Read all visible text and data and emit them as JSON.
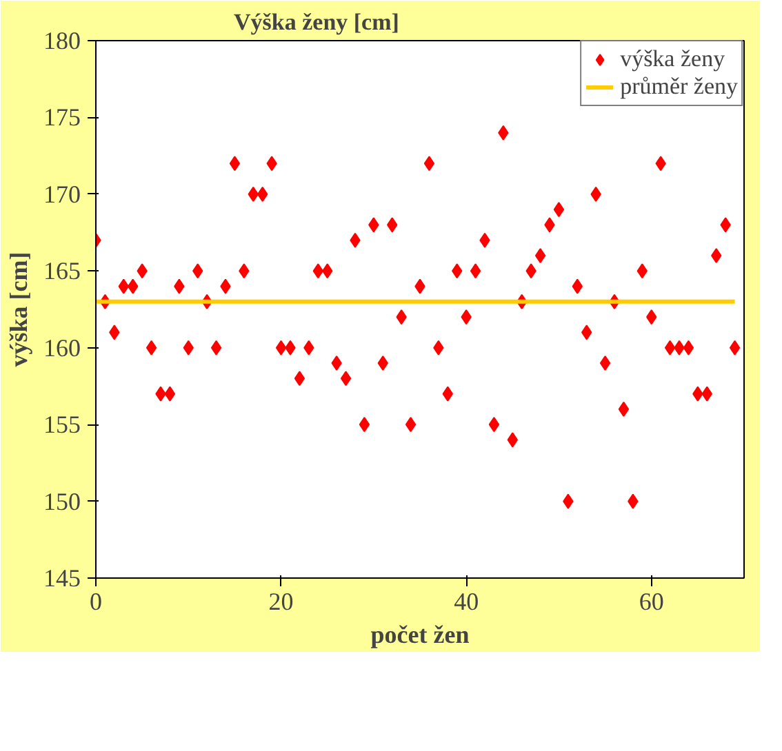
{
  "chart_data": {
    "type": "scatter",
    "title": "Výška ženy [cm]",
    "xlabel": "počet žen",
    "ylabel": "výška [cm]",
    "x": [
      0,
      1,
      2,
      3,
      4,
      5,
      6,
      7,
      8,
      9,
      10,
      11,
      12,
      13,
      14,
      15,
      16,
      17,
      18,
      19,
      20,
      21,
      22,
      23,
      24,
      25,
      26,
      27,
      28,
      29,
      30,
      31,
      32,
      33,
      34,
      35,
      36,
      37,
      38,
      39,
      40,
      41,
      42,
      43,
      44,
      45,
      46,
      47,
      48,
      49,
      50,
      51,
      52,
      53,
      54,
      55,
      56,
      57,
      58,
      59,
      60,
      61,
      62,
      63,
      64,
      65,
      66,
      67,
      68,
      69
    ],
    "series": [
      {
        "name": "výška ženy",
        "color": "#ff0000",
        "marker": "diamond",
        "values": [
          167,
          163,
          161,
          164,
          164,
          165,
          160,
          157,
          157,
          164,
          160,
          165,
          163,
          160,
          164,
          172,
          165,
          170,
          170,
          172,
          160,
          160,
          158,
          160,
          165,
          165,
          159,
          158,
          167,
          155,
          168,
          159,
          168,
          162,
          155,
          164,
          172,
          160,
          157,
          165,
          162,
          165,
          167,
          155,
          174,
          154,
          163,
          165,
          166,
          168,
          169,
          150,
          164,
          161,
          170,
          159,
          163,
          156,
          150,
          165,
          162,
          172,
          160,
          160,
          160,
          157,
          157,
          166,
          168,
          160
        ]
      },
      {
        "name": "průměr ženy",
        "type": "line",
        "color": "#ffcc00",
        "marker": "none",
        "x": [
          0,
          69
        ],
        "values": [
          163,
          163
        ]
      }
    ],
    "xlim": [
      0,
      70
    ],
    "xticks": [
      0,
      20,
      40,
      60
    ],
    "ylim": [
      145,
      180
    ],
    "yticks": [
      145,
      150,
      155,
      160,
      165,
      170,
      175,
      180
    ],
    "grid": false,
    "legend": "top right"
  }
}
